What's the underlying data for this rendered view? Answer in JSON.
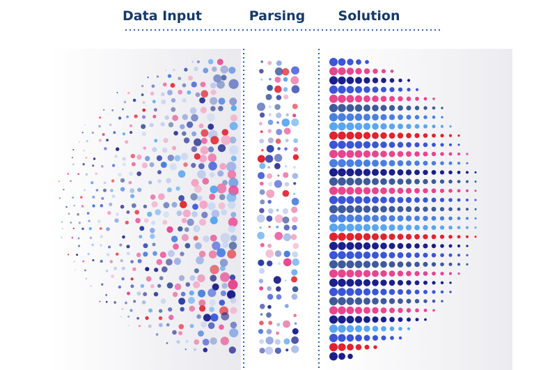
{
  "header": {
    "labels": [
      "Data Input",
      "Parsing",
      "Solution"
    ]
  }
}
